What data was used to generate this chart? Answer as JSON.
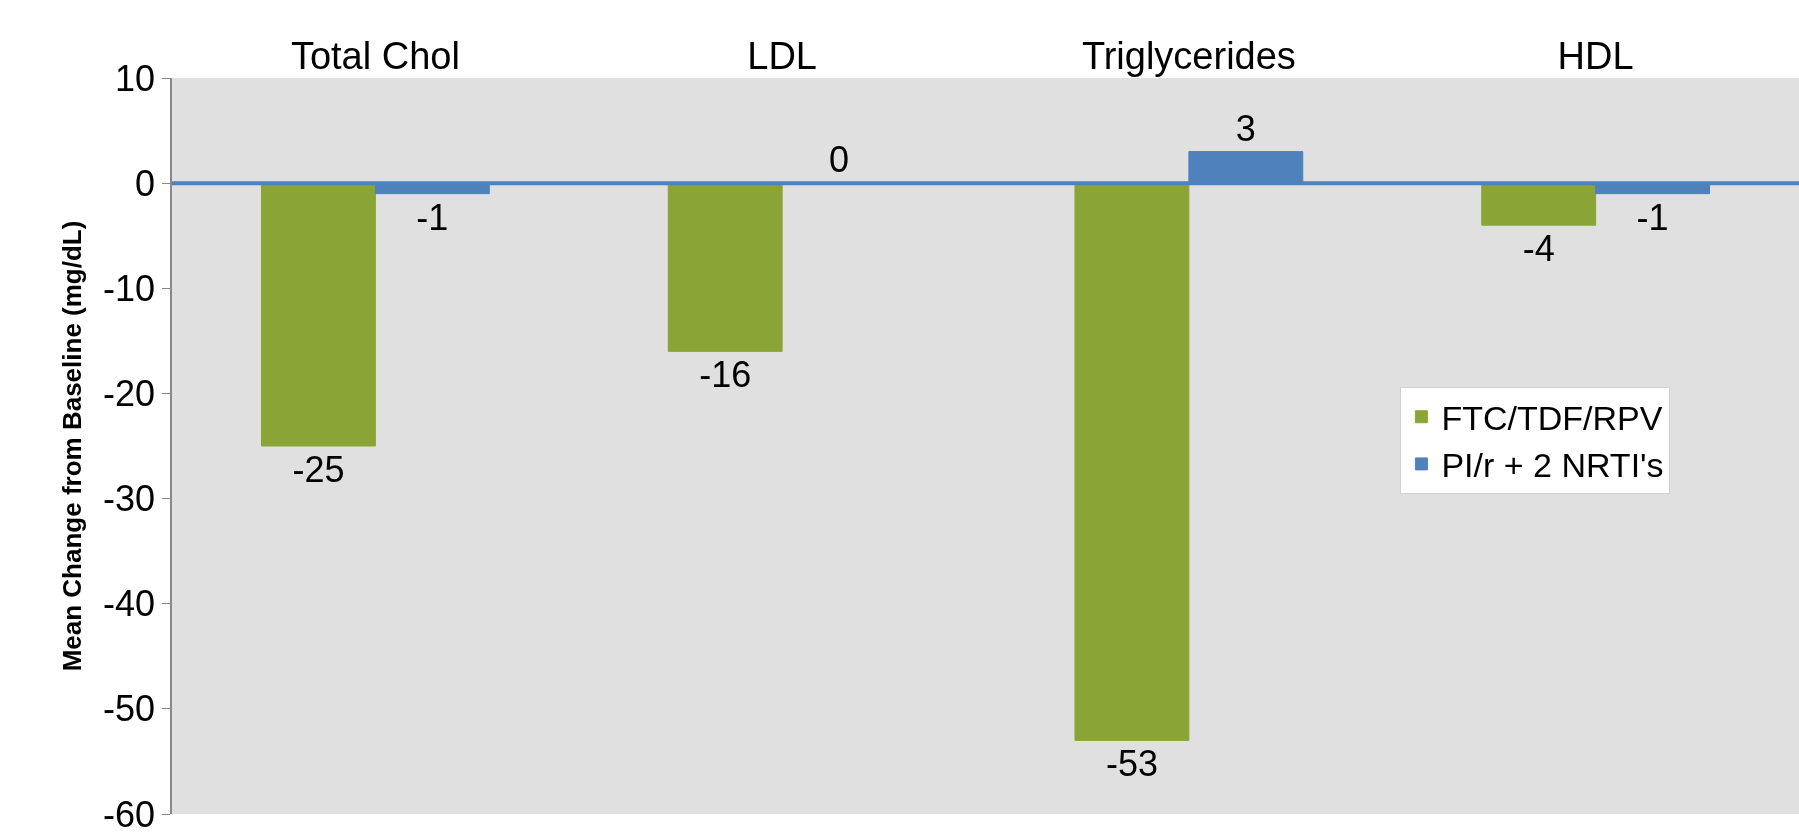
{
  "chart_data": {
    "type": "bar",
    "ylabel": "Mean Change from Baseline (mg/dL)",
    "categories": [
      "Total Chol",
      "LDL",
      "Triglycerides",
      "HDL"
    ],
    "series": [
      {
        "name": "FTC/TDF/RPV",
        "color": "#8aa536",
        "values": [
          -25,
          -16,
          -53,
          -4
        ]
      },
      {
        "name": "PI/r + 2 NRTI's",
        "color": "#4f81bd",
        "values": [
          -1,
          0,
          3,
          -1
        ]
      }
    ],
    "ylim": [
      -60,
      10
    ],
    "yticks": [
      -60,
      -50,
      -40,
      -30,
      -20,
      -10,
      0,
      10
    ],
    "ref_lines": [
      {
        "axis": "y",
        "value": 0,
        "color": "#4f81bd"
      }
    ],
    "data_labels": true,
    "grid": false,
    "legend": "right"
  }
}
